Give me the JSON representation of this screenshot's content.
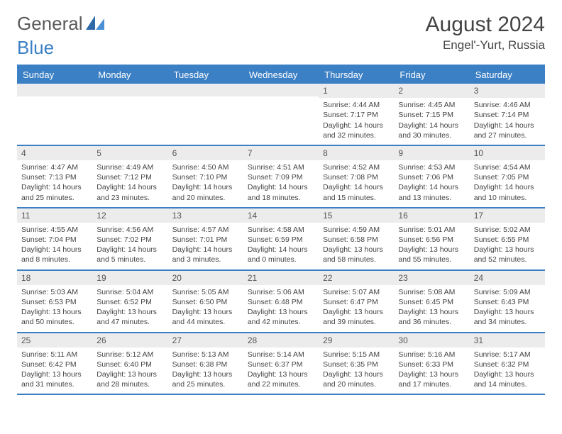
{
  "logo": {
    "word1": "General",
    "word2": "Blue"
  },
  "title": {
    "month": "August 2024",
    "location": "Engel'-Yurt, Russia"
  },
  "dayHeaders": [
    "Sunday",
    "Monday",
    "Tuesday",
    "Wednesday",
    "Thursday",
    "Friday",
    "Saturday"
  ],
  "colors": {
    "header_bg": "#3b7fc4",
    "header_text": "#ffffff",
    "daynum_bg": "#ececec",
    "border": "#3b7fc4",
    "body_text": "#444444"
  },
  "weeks": [
    [
      {
        "empty": true
      },
      {
        "empty": true
      },
      {
        "empty": true
      },
      {
        "empty": true
      },
      {
        "day": "1",
        "sunrise": "Sunrise: 4:44 AM",
        "sunset": "Sunset: 7:17 PM",
        "daylight1": "Daylight: 14 hours",
        "daylight2": "and 32 minutes."
      },
      {
        "day": "2",
        "sunrise": "Sunrise: 4:45 AM",
        "sunset": "Sunset: 7:15 PM",
        "daylight1": "Daylight: 14 hours",
        "daylight2": "and 30 minutes."
      },
      {
        "day": "3",
        "sunrise": "Sunrise: 4:46 AM",
        "sunset": "Sunset: 7:14 PM",
        "daylight1": "Daylight: 14 hours",
        "daylight2": "and 27 minutes."
      }
    ],
    [
      {
        "day": "4",
        "sunrise": "Sunrise: 4:47 AM",
        "sunset": "Sunset: 7:13 PM",
        "daylight1": "Daylight: 14 hours",
        "daylight2": "and 25 minutes."
      },
      {
        "day": "5",
        "sunrise": "Sunrise: 4:49 AM",
        "sunset": "Sunset: 7:12 PM",
        "daylight1": "Daylight: 14 hours",
        "daylight2": "and 23 minutes."
      },
      {
        "day": "6",
        "sunrise": "Sunrise: 4:50 AM",
        "sunset": "Sunset: 7:10 PM",
        "daylight1": "Daylight: 14 hours",
        "daylight2": "and 20 minutes."
      },
      {
        "day": "7",
        "sunrise": "Sunrise: 4:51 AM",
        "sunset": "Sunset: 7:09 PM",
        "daylight1": "Daylight: 14 hours",
        "daylight2": "and 18 minutes."
      },
      {
        "day": "8",
        "sunrise": "Sunrise: 4:52 AM",
        "sunset": "Sunset: 7:08 PM",
        "daylight1": "Daylight: 14 hours",
        "daylight2": "and 15 minutes."
      },
      {
        "day": "9",
        "sunrise": "Sunrise: 4:53 AM",
        "sunset": "Sunset: 7:06 PM",
        "daylight1": "Daylight: 14 hours",
        "daylight2": "and 13 minutes."
      },
      {
        "day": "10",
        "sunrise": "Sunrise: 4:54 AM",
        "sunset": "Sunset: 7:05 PM",
        "daylight1": "Daylight: 14 hours",
        "daylight2": "and 10 minutes."
      }
    ],
    [
      {
        "day": "11",
        "sunrise": "Sunrise: 4:55 AM",
        "sunset": "Sunset: 7:04 PM",
        "daylight1": "Daylight: 14 hours",
        "daylight2": "and 8 minutes."
      },
      {
        "day": "12",
        "sunrise": "Sunrise: 4:56 AM",
        "sunset": "Sunset: 7:02 PM",
        "daylight1": "Daylight: 14 hours",
        "daylight2": "and 5 minutes."
      },
      {
        "day": "13",
        "sunrise": "Sunrise: 4:57 AM",
        "sunset": "Sunset: 7:01 PM",
        "daylight1": "Daylight: 14 hours",
        "daylight2": "and 3 minutes."
      },
      {
        "day": "14",
        "sunrise": "Sunrise: 4:58 AM",
        "sunset": "Sunset: 6:59 PM",
        "daylight1": "Daylight: 14 hours",
        "daylight2": "and 0 minutes."
      },
      {
        "day": "15",
        "sunrise": "Sunrise: 4:59 AM",
        "sunset": "Sunset: 6:58 PM",
        "daylight1": "Daylight: 13 hours",
        "daylight2": "and 58 minutes."
      },
      {
        "day": "16",
        "sunrise": "Sunrise: 5:01 AM",
        "sunset": "Sunset: 6:56 PM",
        "daylight1": "Daylight: 13 hours",
        "daylight2": "and 55 minutes."
      },
      {
        "day": "17",
        "sunrise": "Sunrise: 5:02 AM",
        "sunset": "Sunset: 6:55 PM",
        "daylight1": "Daylight: 13 hours",
        "daylight2": "and 52 minutes."
      }
    ],
    [
      {
        "day": "18",
        "sunrise": "Sunrise: 5:03 AM",
        "sunset": "Sunset: 6:53 PM",
        "daylight1": "Daylight: 13 hours",
        "daylight2": "and 50 minutes."
      },
      {
        "day": "19",
        "sunrise": "Sunrise: 5:04 AM",
        "sunset": "Sunset: 6:52 PM",
        "daylight1": "Daylight: 13 hours",
        "daylight2": "and 47 minutes."
      },
      {
        "day": "20",
        "sunrise": "Sunrise: 5:05 AM",
        "sunset": "Sunset: 6:50 PM",
        "daylight1": "Daylight: 13 hours",
        "daylight2": "and 44 minutes."
      },
      {
        "day": "21",
        "sunrise": "Sunrise: 5:06 AM",
        "sunset": "Sunset: 6:48 PM",
        "daylight1": "Daylight: 13 hours",
        "daylight2": "and 42 minutes."
      },
      {
        "day": "22",
        "sunrise": "Sunrise: 5:07 AM",
        "sunset": "Sunset: 6:47 PM",
        "daylight1": "Daylight: 13 hours",
        "daylight2": "and 39 minutes."
      },
      {
        "day": "23",
        "sunrise": "Sunrise: 5:08 AM",
        "sunset": "Sunset: 6:45 PM",
        "daylight1": "Daylight: 13 hours",
        "daylight2": "and 36 minutes."
      },
      {
        "day": "24",
        "sunrise": "Sunrise: 5:09 AM",
        "sunset": "Sunset: 6:43 PM",
        "daylight1": "Daylight: 13 hours",
        "daylight2": "and 34 minutes."
      }
    ],
    [
      {
        "day": "25",
        "sunrise": "Sunrise: 5:11 AM",
        "sunset": "Sunset: 6:42 PM",
        "daylight1": "Daylight: 13 hours",
        "daylight2": "and 31 minutes."
      },
      {
        "day": "26",
        "sunrise": "Sunrise: 5:12 AM",
        "sunset": "Sunset: 6:40 PM",
        "daylight1": "Daylight: 13 hours",
        "daylight2": "and 28 minutes."
      },
      {
        "day": "27",
        "sunrise": "Sunrise: 5:13 AM",
        "sunset": "Sunset: 6:38 PM",
        "daylight1": "Daylight: 13 hours",
        "daylight2": "and 25 minutes."
      },
      {
        "day": "28",
        "sunrise": "Sunrise: 5:14 AM",
        "sunset": "Sunset: 6:37 PM",
        "daylight1": "Daylight: 13 hours",
        "daylight2": "and 22 minutes."
      },
      {
        "day": "29",
        "sunrise": "Sunrise: 5:15 AM",
        "sunset": "Sunset: 6:35 PM",
        "daylight1": "Daylight: 13 hours",
        "daylight2": "and 20 minutes."
      },
      {
        "day": "30",
        "sunrise": "Sunrise: 5:16 AM",
        "sunset": "Sunset: 6:33 PM",
        "daylight1": "Daylight: 13 hours",
        "daylight2": "and 17 minutes."
      },
      {
        "day": "31",
        "sunrise": "Sunrise: 5:17 AM",
        "sunset": "Sunset: 6:32 PM",
        "daylight1": "Daylight: 13 hours",
        "daylight2": "and 14 minutes."
      }
    ]
  ]
}
